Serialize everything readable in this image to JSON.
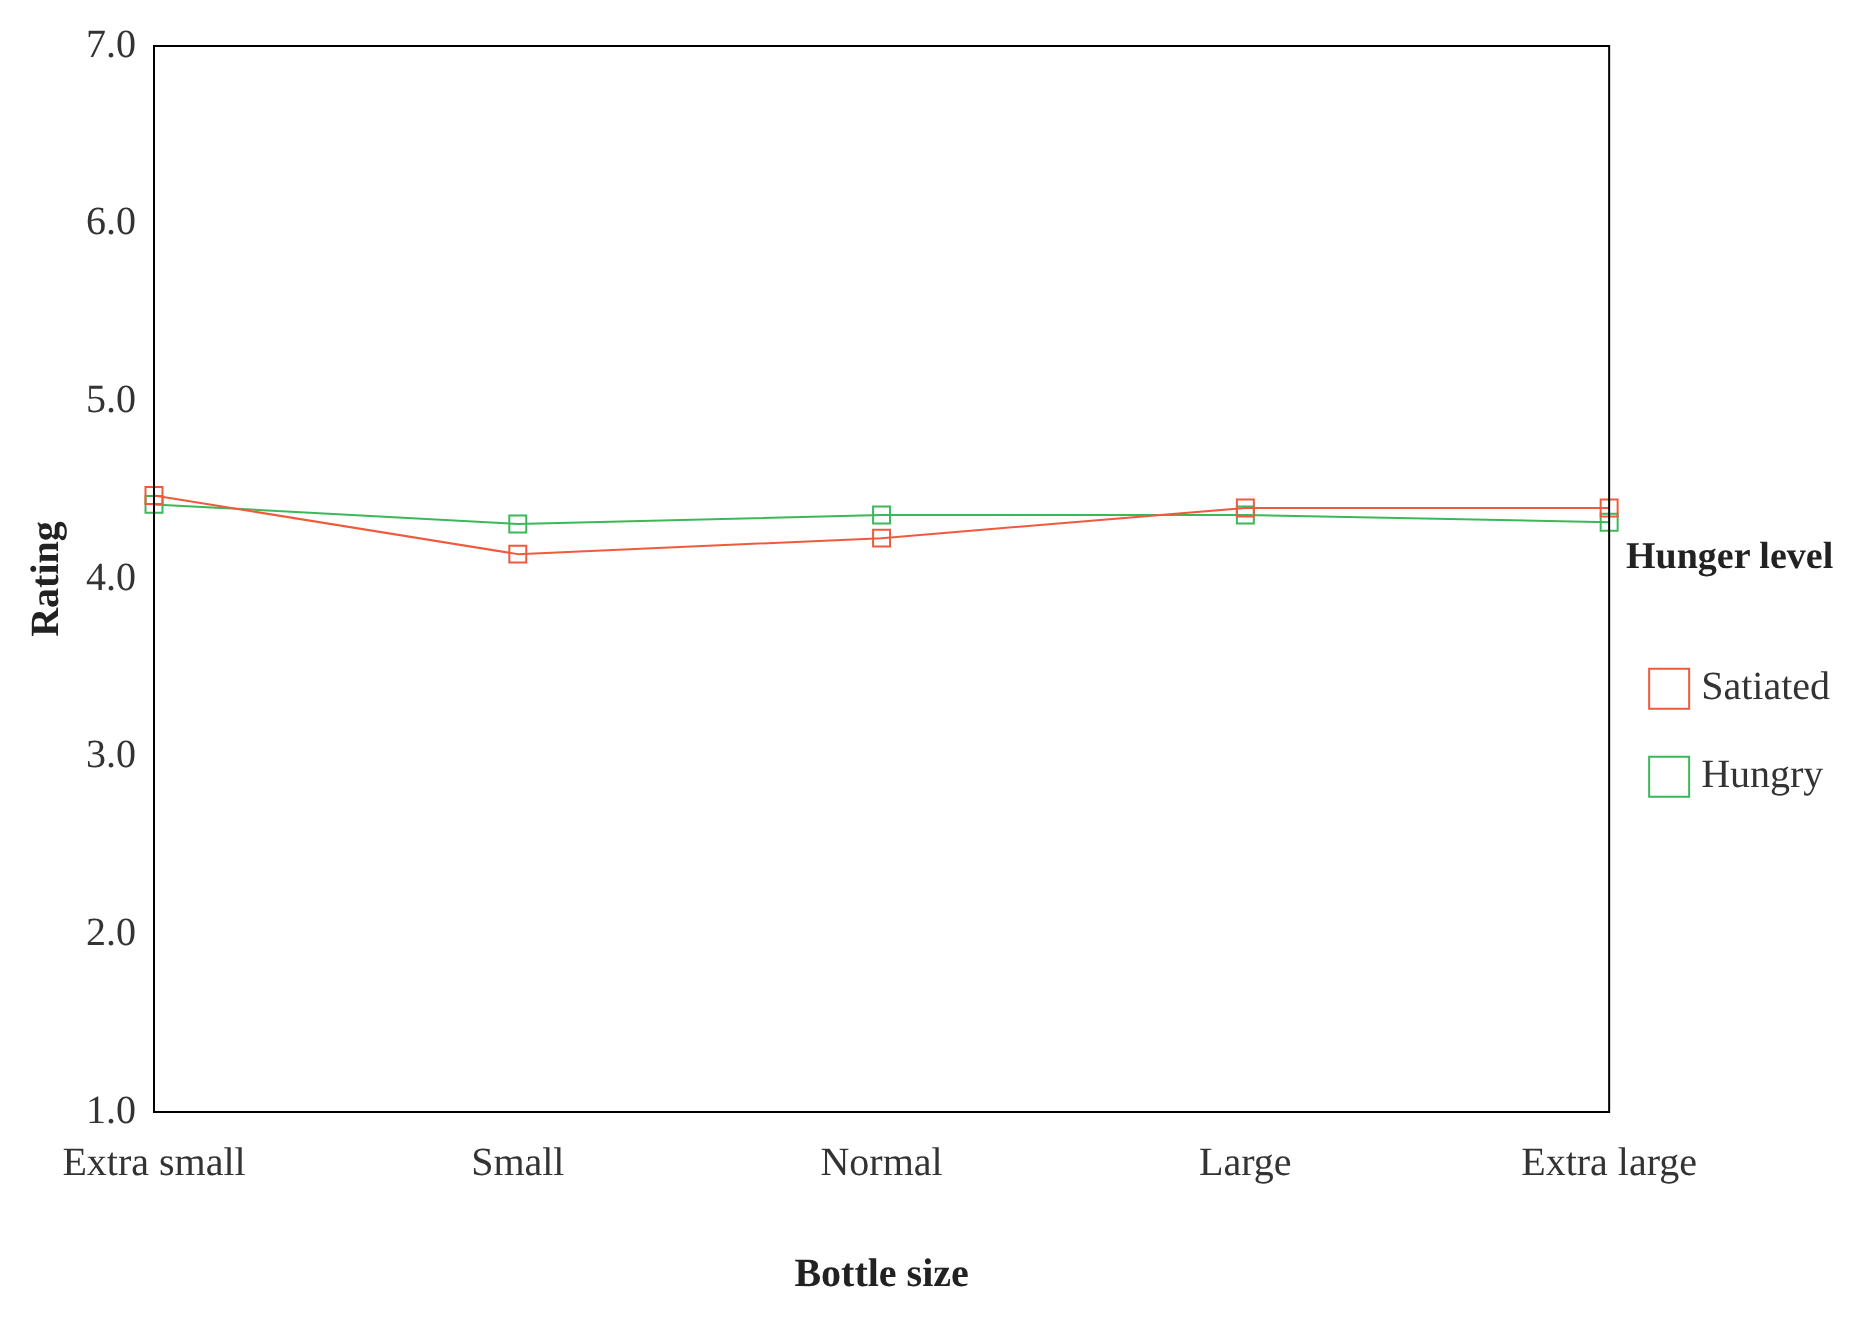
{
  "chart_data": {
    "type": "line",
    "xlabel": "Bottle size",
    "ylabel": "Rating",
    "legend_title": "Hunger level",
    "categories": [
      "Extra small",
      "Small",
      "Normal",
      "Large",
      "Extra large"
    ],
    "series": [
      {
        "name": "Satiated",
        "color": "#f05a3c",
        "values": [
          4.47,
          4.14,
          4.23,
          4.4,
          4.4
        ]
      },
      {
        "name": "Hungry",
        "color": "#3cb85a",
        "values": [
          4.42,
          4.31,
          4.36,
          4.36,
          4.32
        ]
      }
    ],
    "ylim": [
      1,
      7
    ],
    "yticks": [
      {
        "value": 1,
        "label": "1.0"
      },
      {
        "value": 2,
        "label": "2.0"
      },
      {
        "value": 3,
        "label": "3.0"
      },
      {
        "value": 4,
        "label": "4.0"
      },
      {
        "value": 5,
        "label": "5.0"
      },
      {
        "value": 6,
        "label": "6.0"
      },
      {
        "value": 7,
        "label": "7.0"
      }
    ],
    "grid": false,
    "legend": "right",
    "marker": "square",
    "line_style": "solid"
  }
}
